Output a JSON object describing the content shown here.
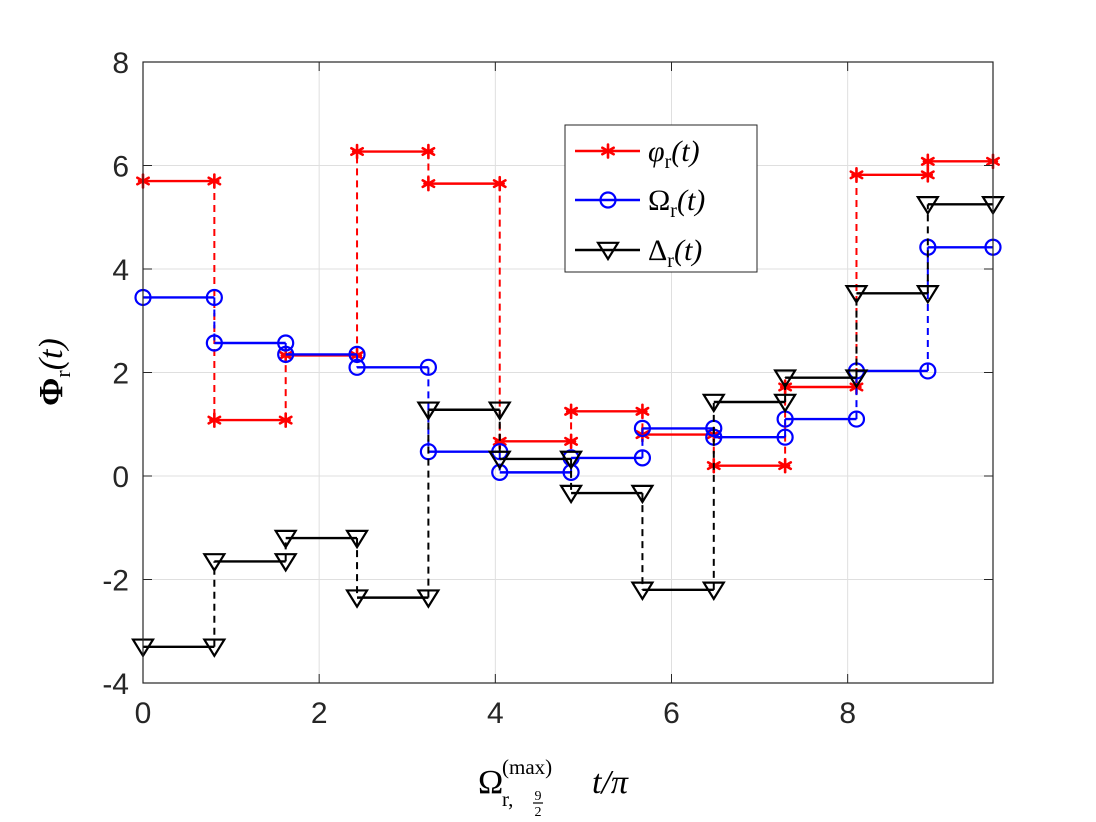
{
  "chart_data": {
    "type": "line",
    "subtype": "step",
    "xlim": [
      0,
      9.65
    ],
    "ylim": [
      -4,
      8
    ],
    "grid": true,
    "legend_position": "top-right",
    "x_ticks": [
      "0",
      "2",
      "4",
      "6",
      "8"
    ],
    "y_ticks": [
      "-4",
      "-2",
      "0",
      "2",
      "4",
      "6",
      "8"
    ],
    "xlabel": {
      "base": "Ω",
      "superscript": "(max)",
      "subscript": "r,",
      "sub_num": "9",
      "sub_den": "2",
      "rest": "t/π"
    },
    "ylabel": {
      "base": "Φ",
      "subscript": "r",
      "rest": "(t)"
    },
    "step_edges": [
      0,
      0.81,
      1.62,
      2.43,
      3.24,
      4.05,
      4.86,
      5.67,
      6.48,
      7.29,
      8.1,
      8.91,
      9.72
    ],
    "series": [
      {
        "name": "phi_r(t)",
        "legend": {
          "base": "φ",
          "subscript": "r",
          "rest": "(t)"
        },
        "color": "#ff0000",
        "marker": "asterisk",
        "values": [
          5.7,
          1.08,
          2.33,
          6.27,
          5.65,
          0.67,
          1.25,
          0.8,
          0.2,
          1.72,
          5.82,
          6.08
        ]
      },
      {
        "name": "Omega_r(t)",
        "legend": {
          "base": "Ω",
          "subscript": "r",
          "rest": "(t)"
        },
        "color": "#0000ff",
        "marker": "circle",
        "values": [
          3.45,
          2.57,
          2.35,
          2.1,
          0.47,
          0.07,
          0.35,
          0.92,
          0.75,
          1.1,
          2.03,
          4.42
        ]
      },
      {
        "name": "Delta_r(t)",
        "legend": {
          "base": "Δ",
          "subscript": "r",
          "rest": "(t)"
        },
        "color": "#000000",
        "marker": "triangle-down",
        "values": [
          -3.3,
          -1.65,
          -1.2,
          -2.35,
          1.28,
          0.33,
          -0.33,
          -2.2,
          1.43,
          1.9,
          3.53,
          5.25
        ]
      }
    ]
  }
}
